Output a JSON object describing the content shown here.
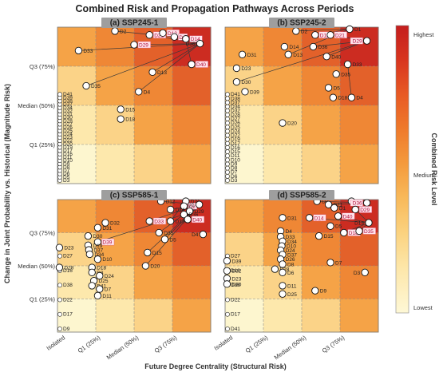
{
  "figure": {
    "title": "Combined Risk and Propagation Pathways Across Periods",
    "xlabel": "Future Degree Centrality (Structural Risk)",
    "ylabel": "Change in Joint Probability vs. Historical (Magnitude Risk)",
    "x_ticks": [
      "Isolated",
      "Q1 (25%)",
      "Median (50%)",
      "Q3 (75%)"
    ],
    "y_ticks": [
      "Q3 (75%)",
      "Median (50%)",
      "Q1 (25%)"
    ],
    "colorbar": {
      "label": "Combined Risk Level",
      "ticks": [
        "Highest",
        "Medium",
        "Lowest"
      ]
    },
    "colors": {
      "lowest": "#fdf6cf",
      "highest": "#cc1f1f",
      "highlight_fill": "#ffe3ec",
      "highlight_text": "#b0103a"
    }
  },
  "chart_data": [
    {
      "type": "scatter",
      "title": "(a) SSP245-1",
      "points": [
        {
          "label": "D2",
          "x": 1.5,
          "y": 3.9,
          "hl": false
        },
        {
          "label": "D33",
          "x": 0.55,
          "y": 3.4,
          "hl": false
        },
        {
          "label": "D21",
          "x": 2.4,
          "y": 3.8,
          "hl": true
        },
        {
          "label": "D12",
          "x": 2.75,
          "y": 3.85,
          "hl": true
        },
        {
          "label": "D1",
          "x": 3.05,
          "y": 3.75,
          "hl": true
        },
        {
          "label": "D14",
          "x": 3.35,
          "y": 3.7,
          "hl": true
        },
        {
          "label": "D36",
          "x": 3.72,
          "y": 3.58,
          "hl": false
        },
        {
          "label": "D29",
          "x": 2.0,
          "y": 3.55,
          "hl": true
        },
        {
          "label": "D40",
          "x": 3.5,
          "y": 3.05,
          "hl": true
        },
        {
          "label": "D13",
          "x": 2.48,
          "y": 2.85,
          "hl": false
        },
        {
          "label": "D35",
          "x": 0.75,
          "y": 2.5,
          "hl": false
        },
        {
          "label": "D4",
          "x": 2.12,
          "y": 2.35,
          "hl": false
        },
        {
          "label": "D15",
          "x": 1.65,
          "y": 1.9,
          "hl": false
        },
        {
          "label": "D18",
          "x": 1.65,
          "y": 1.65,
          "hl": false
        }
      ],
      "column_list": [
        "D3",
        "D5",
        "D6",
        "D7",
        "D8",
        "D9",
        "D10",
        "D11",
        "D16",
        "D17",
        "D19",
        "D20",
        "D22",
        "D23",
        "D24",
        "D25",
        "D26",
        "D27",
        "D28",
        "D30",
        "D31",
        "D32",
        "D34",
        "D37",
        "D38",
        "D39",
        "D41"
      ],
      "paths": [
        [
          "D2",
          "D1"
        ],
        [
          "D33",
          "D36"
        ],
        [
          "D35",
          "D36"
        ],
        [
          "D21",
          "D36"
        ],
        [
          "D29",
          "D36"
        ],
        [
          "D14",
          "D40"
        ],
        [
          "D13",
          "D36"
        ],
        [
          "D4",
          "D36"
        ]
      ]
    },
    {
      "type": "scatter",
      "title": "(b) SSP245-2",
      "points": [
        {
          "label": "D2",
          "x": 1.85,
          "y": 3.9,
          "hl": false
        },
        {
          "label": "D12",
          "x": 2.35,
          "y": 3.8,
          "hl": true
        },
        {
          "label": "D21",
          "x": 2.75,
          "y": 3.8,
          "hl": true
        },
        {
          "label": "D1",
          "x": 3.25,
          "y": 3.95,
          "hl": false
        },
        {
          "label": "D14",
          "x": 1.55,
          "y": 3.5,
          "hl": false
        },
        {
          "label": "D36",
          "x": 2.3,
          "y": 3.5,
          "hl": false
        },
        {
          "label": "D13",
          "x": 1.65,
          "y": 3.3,
          "hl": false
        },
        {
          "label": "D40",
          "x": 2.65,
          "y": 3.25,
          "hl": false
        },
        {
          "label": "D29",
          "x": 3.7,
          "y": 3.65,
          "hl": true
        },
        {
          "label": "D33",
          "x": 3.2,
          "y": 3.05,
          "hl": false
        },
        {
          "label": "D31",
          "x": 0.45,
          "y": 3.3,
          "hl": false
        },
        {
          "label": "D23",
          "x": 0.3,
          "y": 2.95,
          "hl": false
        },
        {
          "label": "D30",
          "x": 0.3,
          "y": 2.6,
          "hl": false
        },
        {
          "label": "D39",
          "x": 0.52,
          "y": 2.35,
          "hl": false
        },
        {
          "label": "D35",
          "x": 2.9,
          "y": 2.8,
          "hl": false
        },
        {
          "label": "D5",
          "x": 2.7,
          "y": 2.45,
          "hl": false
        },
        {
          "label": "D18",
          "x": 2.82,
          "y": 2.2,
          "hl": false
        },
        {
          "label": "D4",
          "x": 3.3,
          "y": 2.2,
          "hl": false
        },
        {
          "label": "D20",
          "x": 1.5,
          "y": 1.55,
          "hl": false
        }
      ],
      "column_list": [
        "D3",
        "D6",
        "D7",
        "D8",
        "D9",
        "D10",
        "D11",
        "D15",
        "D16",
        "D17",
        "D19",
        "D22",
        "D24",
        "D25",
        "D26",
        "D27",
        "D28",
        "D32",
        "D34",
        "D37",
        "D38",
        "D41"
      ],
      "paths": [
        [
          "D2",
          "D1"
        ],
        [
          "D12",
          "D1"
        ],
        [
          "D21",
          "D29"
        ],
        [
          "D36",
          "D29"
        ],
        [
          "D13",
          "D1"
        ],
        [
          "D40",
          "D29"
        ],
        [
          "D30",
          "D29"
        ],
        [
          "D33",
          "D4"
        ]
      ]
    },
    {
      "type": "scatter",
      "title": "(c) SSP585-1",
      "points": [
        {
          "label": "D12",
          "x": 2.7,
          "y": 3.95,
          "hl": false
        },
        {
          "label": "D21",
          "x": 3.35,
          "y": 3.95,
          "hl": false
        },
        {
          "label": "D2",
          "x": 3.3,
          "y": 3.8,
          "hl": true
        },
        {
          "label": "D1",
          "x": 3.7,
          "y": 3.85,
          "hl": false
        },
        {
          "label": "D14",
          "x": 2.95,
          "y": 3.7,
          "hl": false
        },
        {
          "label": "D29",
          "x": 3.45,
          "y": 3.65,
          "hl": false
        },
        {
          "label": "D36",
          "x": 3.3,
          "y": 3.55,
          "hl": false
        },
        {
          "label": "D33",
          "x": 2.4,
          "y": 3.35,
          "hl": true
        },
        {
          "label": "D13",
          "x": 2.95,
          "y": 3.35,
          "hl": false
        },
        {
          "label": "D40",
          "x": 3.4,
          "y": 3.4,
          "hl": true
        },
        {
          "label": "D35",
          "x": 2.65,
          "y": 3.0,
          "hl": false
        },
        {
          "label": "D5",
          "x": 2.8,
          "y": 2.8,
          "hl": false
        },
        {
          "label": "D4",
          "x": 3.8,
          "y": 2.95,
          "hl": false
        },
        {
          "label": "D32",
          "x": 1.25,
          "y": 3.3,
          "hl": false
        },
        {
          "label": "D31",
          "x": 1.05,
          "y": 3.15,
          "hl": false
        },
        {
          "label": "D30",
          "x": 0.8,
          "y": 2.9,
          "hl": false
        },
        {
          "label": "D39",
          "x": 1.05,
          "y": 2.72,
          "hl": true
        },
        {
          "label": "D19",
          "x": 0.8,
          "y": 2.62,
          "hl": false
        },
        {
          "label": "D37",
          "x": 0.82,
          "y": 2.48,
          "hl": false
        },
        {
          "label": "D34",
          "x": 0.84,
          "y": 2.35,
          "hl": false
        },
        {
          "label": "D10",
          "x": 1.05,
          "y": 2.2,
          "hl": false
        },
        {
          "label": "D23",
          "x": 0.05,
          "y": 2.55,
          "hl": false
        },
        {
          "label": "D28",
          "x": 0.05,
          "y": 1.95,
          "hl": false
        },
        {
          "label": "D15",
          "x": 2.35,
          "y": 2.4,
          "hl": false
        },
        {
          "label": "D20",
          "x": 2.3,
          "y": 2.0,
          "hl": false
        },
        {
          "label": "D18",
          "x": 0.9,
          "y": 1.95,
          "hl": false
        },
        {
          "label": "D8",
          "x": 0.9,
          "y": 1.8,
          "hl": false
        },
        {
          "label": "D24",
          "x": 1.1,
          "y": 1.7,
          "hl": false
        },
        {
          "label": "D25",
          "x": 0.95,
          "y": 1.55,
          "hl": false
        },
        {
          "label": "D41",
          "x": 0.9,
          "y": 1.4,
          "hl": false
        },
        {
          "label": "D7",
          "x": 1.1,
          "y": 1.3,
          "hl": false
        },
        {
          "label": "D11",
          "x": 1.05,
          "y": 1.1,
          "hl": false
        }
      ],
      "column_list": [
        "D9",
        "D17",
        "D22",
        "D38",
        "D16",
        "D27"
      ],
      "paths": [
        [
          "D12",
          "D1"
        ],
        [
          "D14",
          "D1"
        ],
        [
          "D33",
          "D1"
        ],
        [
          "D13",
          "D21"
        ],
        [
          "D35",
          "D36"
        ],
        [
          "D5",
          "D1"
        ],
        [
          "D15",
          "D1"
        ],
        [
          "D20",
          "D1"
        ],
        [
          "D39",
          "D36"
        ]
      ]
    },
    {
      "type": "scatter",
      "title": "(d) SSP585-2",
      "points": [
        {
          "label": "D2",
          "x": 2.4,
          "y": 3.95,
          "hl": false
        },
        {
          "label": "D21",
          "x": 2.7,
          "y": 3.85,
          "hl": false
        },
        {
          "label": "D12",
          "x": 3.3,
          "y": 3.95,
          "hl": false
        },
        {
          "label": "D36",
          "x": 3.7,
          "y": 3.9,
          "hl": true
        },
        {
          "label": "D1",
          "x": 2.85,
          "y": 3.75,
          "hl": false
        },
        {
          "label": "D29",
          "x": 3.4,
          "y": 3.7,
          "hl": true
        },
        {
          "label": "D14",
          "x": 2.2,
          "y": 3.45,
          "hl": true
        },
        {
          "label": "D40",
          "x": 2.95,
          "y": 3.5,
          "hl": true
        },
        {
          "label": "D13",
          "x": 3.75,
          "y": 3.3,
          "hl": false
        },
        {
          "label": "D5",
          "x": 2.75,
          "y": 3.2,
          "hl": false
        },
        {
          "label": "D18",
          "x": 3.1,
          "y": 3.0,
          "hl": true
        },
        {
          "label": "D35",
          "x": 3.5,
          "y": 3.05,
          "hl": true
        },
        {
          "label": "D15",
          "x": 2.45,
          "y": 2.9,
          "hl": false
        },
        {
          "label": "D31",
          "x": 1.5,
          "y": 3.45,
          "hl": false
        },
        {
          "label": "D4",
          "x": 1.45,
          "y": 3.05,
          "hl": false
        },
        {
          "label": "D33",
          "x": 1.45,
          "y": 2.88,
          "hl": false
        },
        {
          "label": "D34",
          "x": 1.5,
          "y": 2.74,
          "hl": false
        },
        {
          "label": "D10",
          "x": 1.48,
          "y": 2.6,
          "hl": false
        },
        {
          "label": "D24",
          "x": 1.45,
          "y": 2.47,
          "hl": false
        },
        {
          "label": "D37",
          "x": 1.5,
          "y": 2.34,
          "hl": false
        },
        {
          "label": "D26",
          "x": 1.45,
          "y": 2.2,
          "hl": false
        },
        {
          "label": "D8",
          "x": 1.5,
          "y": 2.05,
          "hl": false
        },
        {
          "label": "D28",
          "x": 1.3,
          "y": 1.9,
          "hl": false
        },
        {
          "label": "D6",
          "x": 1.5,
          "y": 1.8,
          "hl": false
        },
        {
          "label": "D39",
          "x": 0.05,
          "y": 2.15,
          "hl": false
        },
        {
          "label": "D32",
          "x": 0.05,
          "y": 1.85,
          "hl": false
        },
        {
          "label": "D23",
          "x": 0.05,
          "y": 1.62,
          "hl": false
        },
        {
          "label": "D30",
          "x": 0.05,
          "y": 1.45,
          "hl": false
        },
        {
          "label": "D11",
          "x": 1.5,
          "y": 1.4,
          "hl": false
        },
        {
          "label": "D7",
          "x": 2.75,
          "y": 2.1,
          "hl": false
        },
        {
          "label": "D3",
          "x": 3.65,
          "y": 1.8,
          "hl": false
        },
        {
          "label": "D9",
          "x": 2.35,
          "y": 1.25,
          "hl": false
        },
        {
          "label": "D25",
          "x": 1.5,
          "y": 1.15,
          "hl": false
        }
      ],
      "column_list": [
        "D41",
        "D17",
        "D22",
        "D38",
        "D16",
        "D27"
      ],
      "paths": [
        [
          "D2",
          "D36"
        ],
        [
          "D21",
          "D36"
        ],
        [
          "D12",
          "D36"
        ],
        [
          "D14",
          "D13"
        ],
        [
          "D40",
          "D13"
        ],
        [
          "D29",
          "D13"
        ],
        [
          "D18",
          "D13"
        ],
        [
          "D35",
          "D13"
        ]
      ]
    }
  ]
}
